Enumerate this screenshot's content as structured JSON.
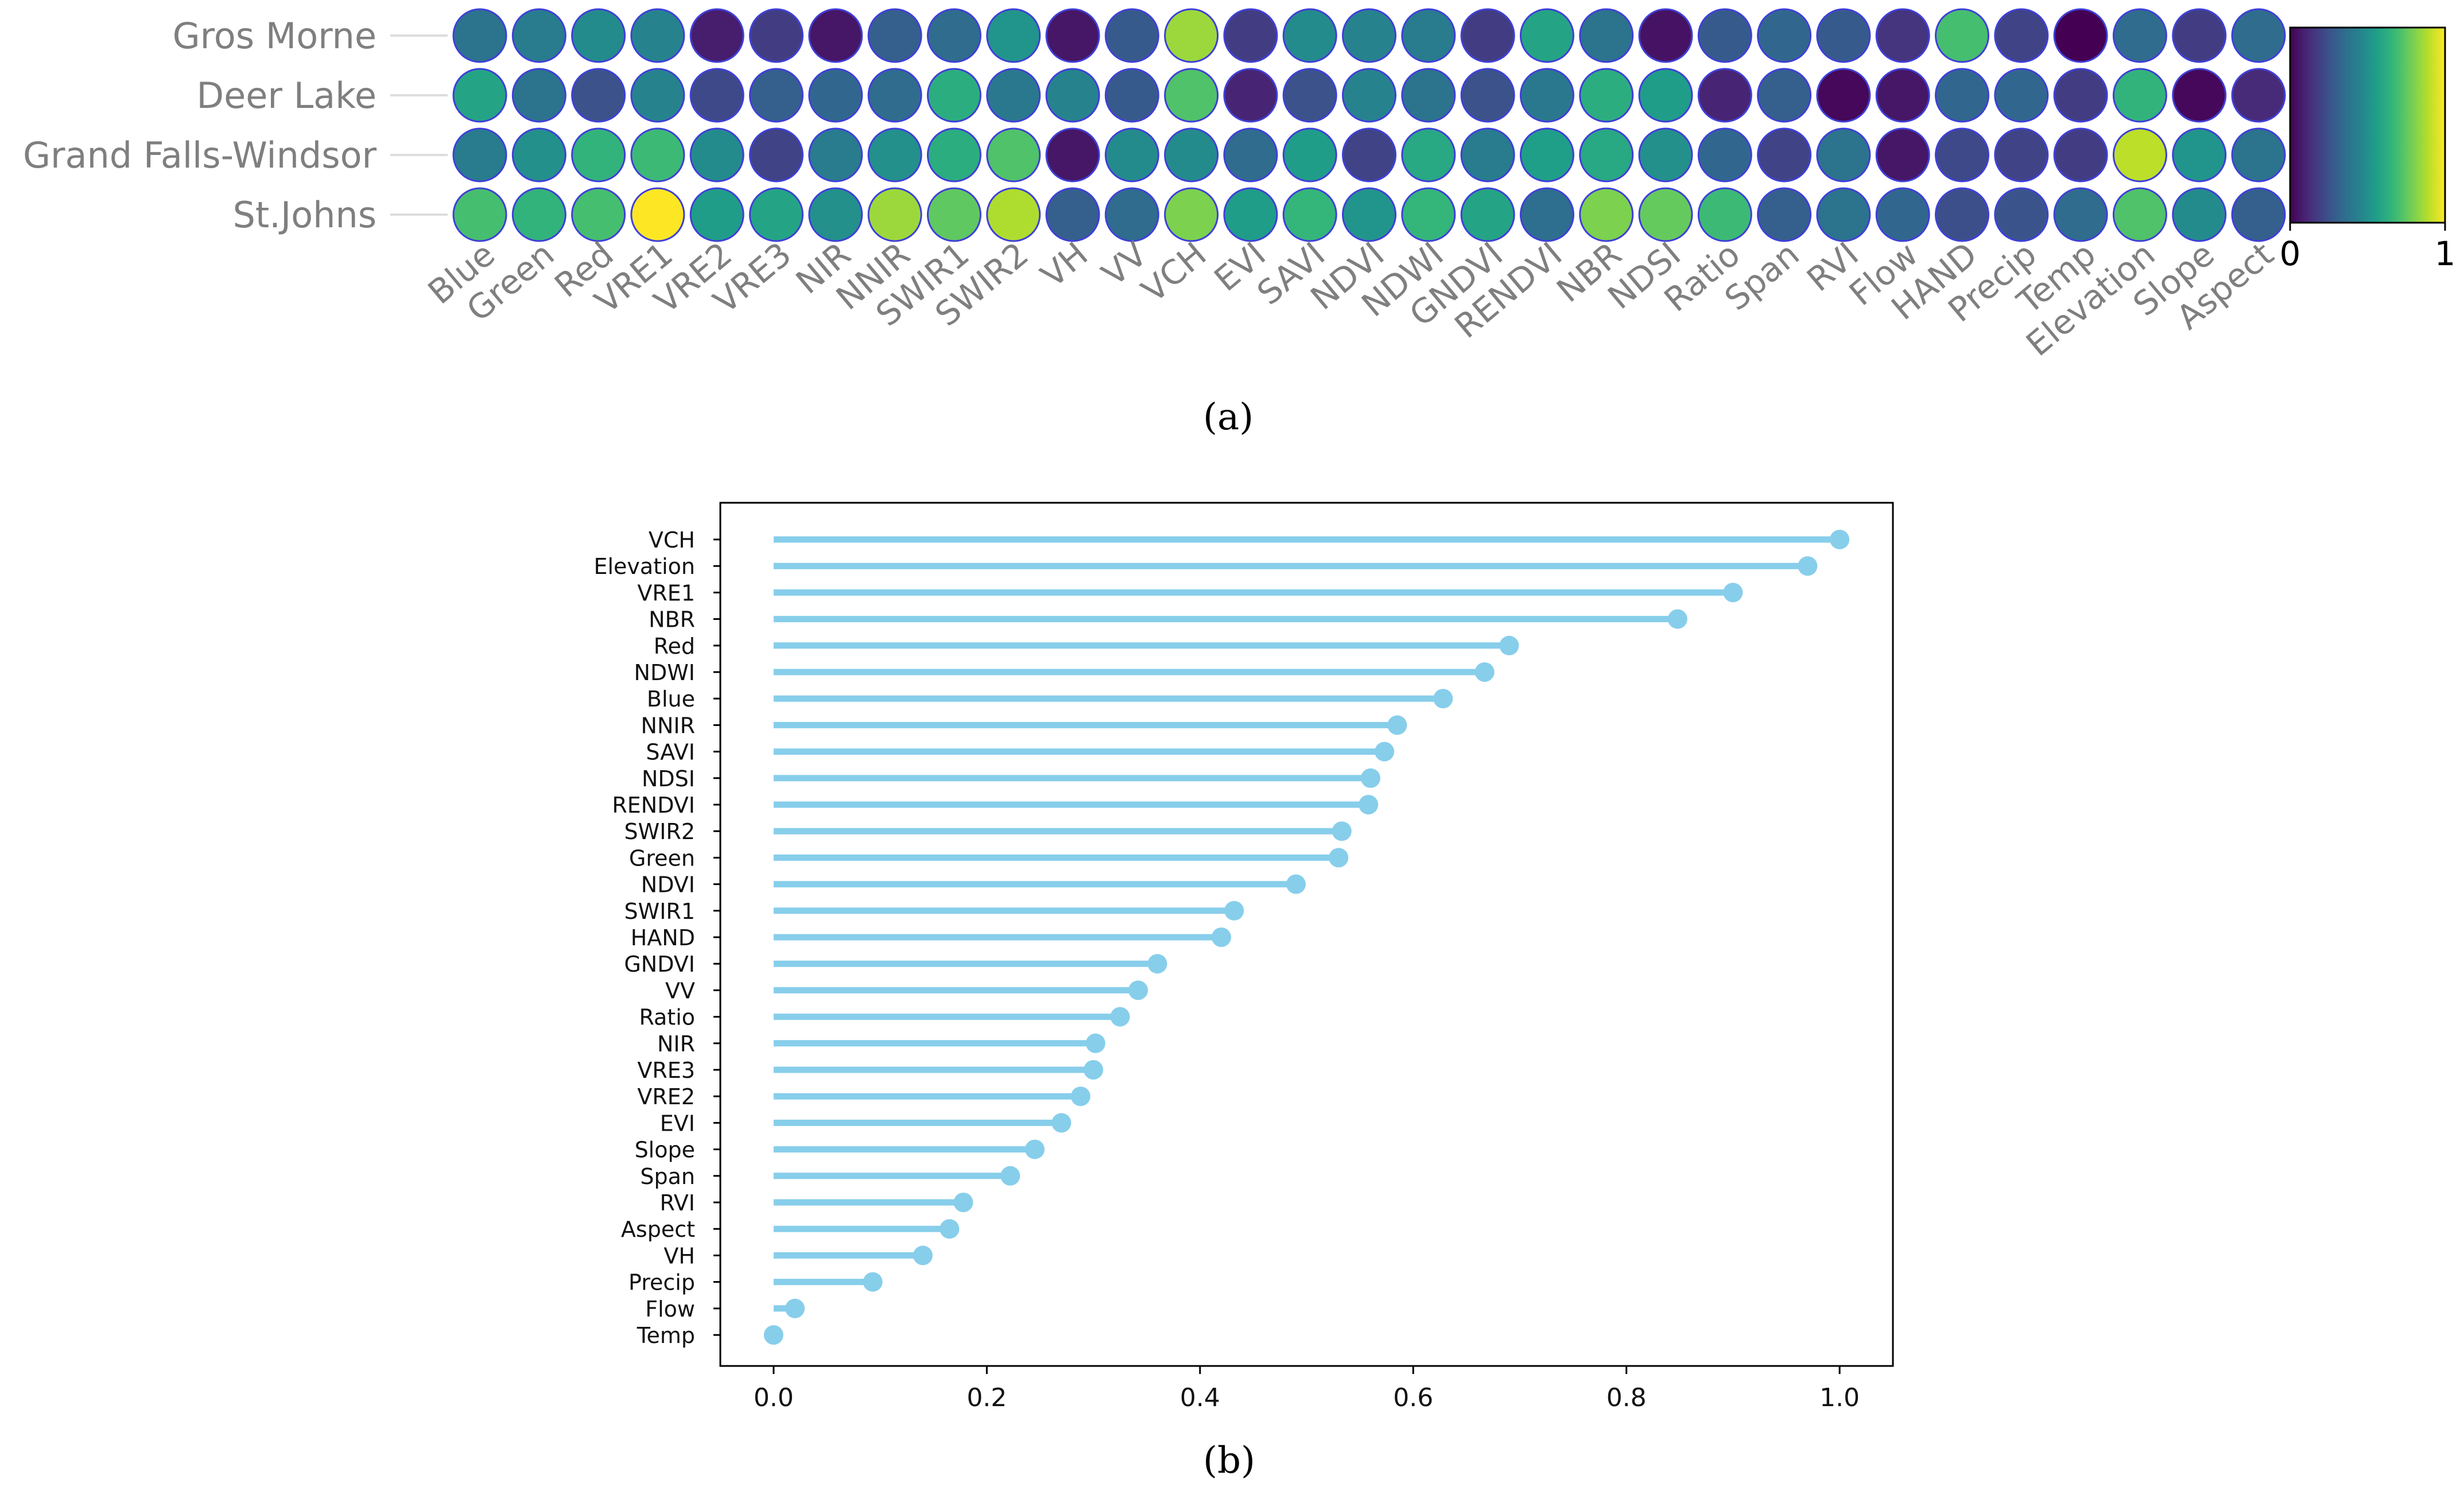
{
  "figure": {
    "caption_a": "(a)",
    "caption_b": "(b)"
  },
  "colors": {
    "stem": "#87CEEB",
    "circle_edge": "#3f3fd8",
    "axis_text_a": "#7f7f7f",
    "axis_text_b": "#111111"
  },
  "chart_data": [
    {
      "type": "heatmap",
      "title": "",
      "rows": [
        "Gros Morne",
        "Deer Lake",
        "Grand Falls-Windsor",
        "St.Johns"
      ],
      "columns": [
        "Blue",
        "Green",
        "Red",
        "VRE1",
        "VRE2",
        "VRE3",
        "NIR",
        "NNIR",
        "SWIR1",
        "SWIR2",
        "VH",
        "VV",
        "VCH",
        "EVI",
        "SAVI",
        "NDVI",
        "NDWI",
        "GNDVI",
        "RENDVI",
        "NBR",
        "NDSI",
        "Ratio",
        "Span",
        "RVI",
        "Flow",
        "HAND",
        "Precip",
        "Temp",
        "Elevation",
        "Slope",
        "Aspect"
      ],
      "values": [
        [
          0.38,
          0.42,
          0.48,
          0.45,
          0.08,
          0.18,
          0.06,
          0.3,
          0.35,
          0.52,
          0.06,
          0.28,
          0.85,
          0.18,
          0.48,
          0.45,
          0.42,
          0.18,
          0.58,
          0.38,
          0.05,
          0.28,
          0.33,
          0.28,
          0.15,
          0.7,
          0.2,
          0.0,
          0.35,
          0.18,
          0.35
        ],
        [
          0.58,
          0.38,
          0.25,
          0.45,
          0.22,
          0.3,
          0.33,
          0.35,
          0.62,
          0.4,
          0.45,
          0.28,
          0.72,
          0.1,
          0.25,
          0.45,
          0.38,
          0.25,
          0.4,
          0.62,
          0.55,
          0.1,
          0.3,
          0.02,
          0.06,
          0.33,
          0.33,
          0.18,
          0.65,
          0.02,
          0.12
        ],
        [
          0.42,
          0.5,
          0.65,
          0.68,
          0.48,
          0.2,
          0.42,
          0.5,
          0.62,
          0.72,
          0.06,
          0.48,
          0.48,
          0.35,
          0.55,
          0.2,
          0.6,
          0.42,
          0.56,
          0.6,
          0.5,
          0.33,
          0.2,
          0.38,
          0.06,
          0.22,
          0.2,
          0.18,
          0.9,
          0.52,
          0.38
        ],
        [
          0.7,
          0.65,
          0.7,
          1.0,
          0.55,
          0.58,
          0.5,
          0.85,
          0.75,
          0.88,
          0.3,
          0.35,
          0.8,
          0.55,
          0.66,
          0.52,
          0.66,
          0.58,
          0.36,
          0.8,
          0.76,
          0.68,
          0.3,
          0.38,
          0.33,
          0.24,
          0.26,
          0.35,
          0.72,
          0.48,
          0.3
        ]
      ],
      "colorbar": {
        "colormap": "viridis",
        "min": 0,
        "max": 1,
        "ticks": [
          "0",
          "1"
        ]
      }
    },
    {
      "type": "lollipop",
      "orientation": "horizontal",
      "title": "",
      "xlabel": "",
      "ylabel": "",
      "xlim": [
        -0.05,
        1.05
      ],
      "xticks": [
        "0.0",
        "0.2",
        "0.4",
        "0.6",
        "0.8",
        "1.0"
      ],
      "categories": [
        "VCH",
        "Elevation",
        "VRE1",
        "NBR",
        "Red",
        "NDWI",
        "Blue",
        "NNIR",
        "SAVI",
        "NDSI",
        "RENDVI",
        "SWIR2",
        "Green",
        "NDVI",
        "SWIR1",
        "HAND",
        "GNDVI",
        "VV",
        "Ratio",
        "NIR",
        "VRE3",
        "VRE2",
        "EVI",
        "Slope",
        "Span",
        "RVI",
        "Aspect",
        "VH",
        "Precip",
        "Flow",
        "Temp"
      ],
      "values": [
        1.0,
        0.97,
        0.9,
        0.848,
        0.69,
        0.667,
        0.628,
        0.585,
        0.573,
        0.56,
        0.558,
        0.533,
        0.53,
        0.49,
        0.432,
        0.42,
        0.36,
        0.342,
        0.325,
        0.302,
        0.3,
        0.288,
        0.27,
        0.245,
        0.222,
        0.178,
        0.165,
        0.14,
        0.093,
        0.02,
        0.0
      ]
    }
  ]
}
